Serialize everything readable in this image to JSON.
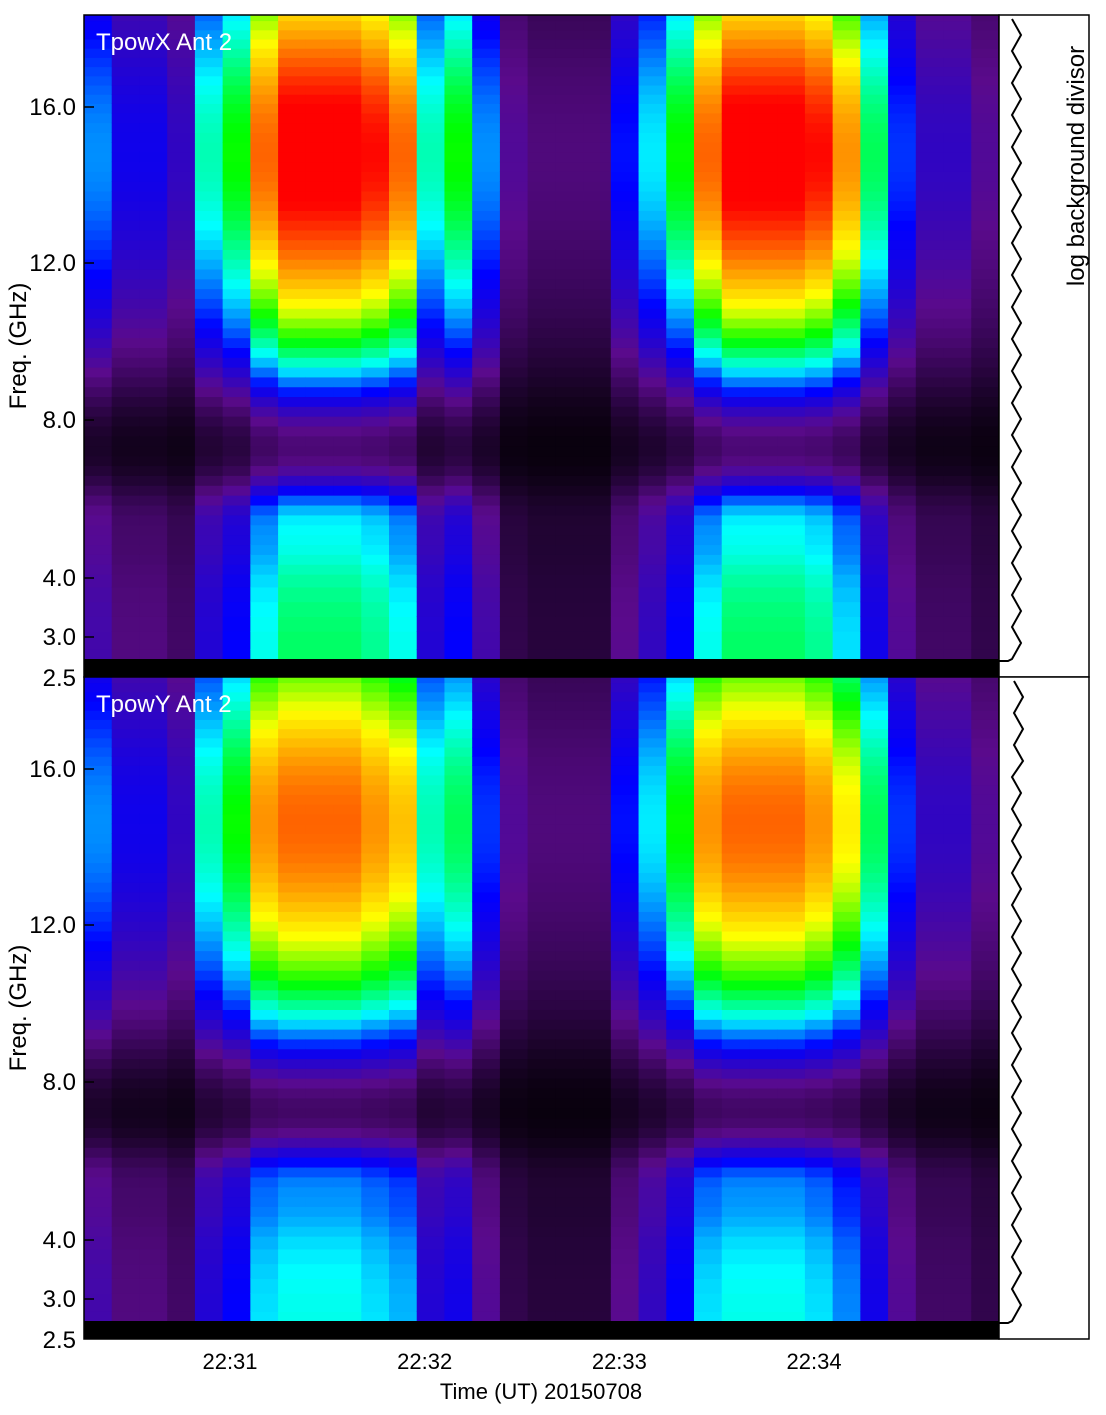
{
  "chart_data": [
    {
      "type": "heatmap",
      "title": "TpowX Ant 2",
      "xlabel": "",
      "ylabel": "Freq. (GHz)",
      "sidebar_label": "log background divisor",
      "x_ticks": [
        "22:31",
        "22:32",
        "22:33",
        "22:34"
      ],
      "y_ticks": [
        "2.5",
        "3.0",
        "4.0",
        "8.0",
        "12.0",
        "16.0"
      ],
      "ylim": [
        2.5,
        18.5
      ],
      "y_scale": "quasi-log",
      "xlim": [
        "22:30:15",
        "22:34:57"
      ],
      "column_levels": [
        0.35,
        0.25,
        0.25,
        0.2,
        0.45,
        0.55,
        0.85,
        1.0,
        1.0,
        1.0,
        0.95,
        0.85,
        0.45,
        0.55,
        0.35,
        0.15,
        0.12,
        0.12,
        0.12,
        0.28,
        0.4,
        0.55,
        0.85,
        1.0,
        1.0,
        1.0,
        0.95,
        0.8,
        0.5,
        0.3,
        0.2,
        0.2,
        0.15
      ],
      "spectral_shape": "peak near 14.7 GHz; minimum near 7 GHz; secondary ridge near 5.5 GHz",
      "colorscale": [
        "#000000",
        "#5a0a8c",
        "#0000ff",
        "#00ffff",
        "#00ff00",
        "#ffff00",
        "#ff8000",
        "#ff0000"
      ]
    },
    {
      "type": "heatmap",
      "title": "TpowY Ant 2",
      "xlabel": "Time (UT) 20150708",
      "ylabel": "Freq. (GHz)",
      "x_ticks": [
        "22:31",
        "22:32",
        "22:33",
        "22:34"
      ],
      "y_ticks": [
        "2.5",
        "3.0",
        "4.0",
        "8.0",
        "12.0",
        "16.0"
      ],
      "ylim": [
        2.5,
        18.5
      ],
      "y_scale": "quasi-log",
      "xlim": [
        "22:30:15",
        "22:34:57"
      ],
      "column_levels": [
        0.35,
        0.25,
        0.25,
        0.2,
        0.45,
        0.55,
        0.8,
        0.85,
        0.85,
        0.85,
        0.8,
        0.75,
        0.45,
        0.5,
        0.3,
        0.15,
        0.12,
        0.12,
        0.12,
        0.28,
        0.4,
        0.55,
        0.8,
        0.85,
        0.85,
        0.85,
        0.8,
        0.7,
        0.5,
        0.3,
        0.2,
        0.2,
        0.15
      ],
      "spectral_shape": "peak near 14.5 GHz; minimum near 7 GHz; secondary ridge near 5.5 GHz",
      "colorscale": [
        "#000000",
        "#5a0a8c",
        "#0000ff",
        "#00ffff",
        "#00ff00",
        "#ffff00",
        "#ff8000",
        "#ff0000"
      ]
    }
  ]
}
